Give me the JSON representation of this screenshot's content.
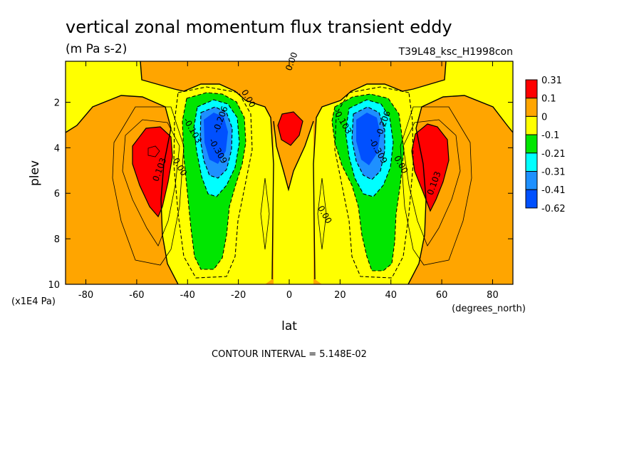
{
  "chart_data": {
    "type": "contour",
    "title": "vertical zonal momentum flux transient eddy",
    "units": "(m Pa s-2)",
    "run_label": "T39L48_ksc_H1998con",
    "xlabel": "lat",
    "xunits": "(degrees_north)",
    "ylabel": "plev",
    "yunits": "(x1E4 Pa)",
    "xlim": [
      -88,
      88
    ],
    "ylim": [
      10,
      0.2
    ],
    "xticks": [
      -80,
      -60,
      -40,
      -20,
      0,
      20,
      40,
      60,
      80
    ],
    "yticks": [
      2,
      4,
      6,
      8,
      10
    ],
    "footnote": "CONTOUR INTERVAL = 5.148E-02",
    "legend_levels": [
      "0.31",
      "0.1",
      "0",
      "-0.1",
      "-0.21",
      "-0.31",
      "-0.41",
      "-0.62"
    ],
    "legend_colors": [
      "#ff0000",
      "#ffa500",
      "#ffff00",
      "#00e600",
      "#00ffff",
      "#1e90ff",
      "#0050ff"
    ],
    "contour_labels": [
      {
        "text": "0.00",
        "lat": 2,
        "plev": 0.25
      },
      {
        "text": "0.00",
        "lat": -17,
        "plev": 1.9
      },
      {
        "text": "-0.103",
        "lat": -39,
        "plev": 3.3
      },
      {
        "text": "-0.206",
        "lat": -26,
        "plev": 2.8
      },
      {
        "text": "-0.309",
        "lat": -29,
        "plev": 4.2
      },
      {
        "text": "0.00",
        "lat": -44,
        "plev": 4.9
      },
      {
        "text": "0.103",
        "lat": -50,
        "plev": 5.0
      },
      {
        "text": "0.00",
        "lat": 13,
        "plev": 7.0
      },
      {
        "text": "-0.103",
        "lat": 20,
        "plev": 2.9
      },
      {
        "text": "-0.206",
        "lat": 38,
        "plev": 3.0
      },
      {
        "text": "-0.309",
        "lat": 34,
        "plev": 4.2
      },
      {
        "text": "0.00",
        "lat": 43,
        "plev": 4.8
      },
      {
        "text": "0.103",
        "lat": 58,
        "plev": 5.6
      }
    ]
  }
}
